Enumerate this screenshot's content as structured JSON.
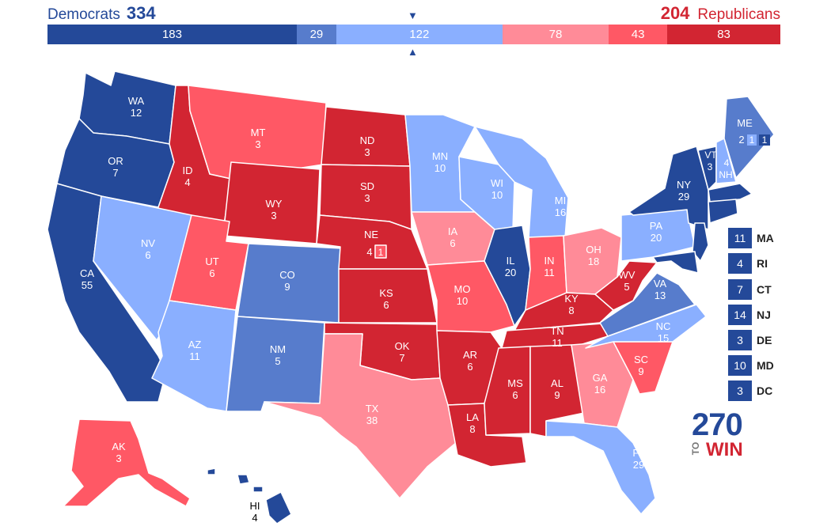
{
  "header": {
    "dem_label": "Democrats",
    "dem_total": "334",
    "rep_total": "204",
    "rep_label": "Republicans"
  },
  "colors": {
    "safe_dem": "#244999",
    "likely_dem": "#577ccc",
    "lean_dem": "#8aafff",
    "lean_rep": "#ff8b98",
    "likely_rep": "#ff5865",
    "safe_rep": "#d22532"
  },
  "bar": [
    {
      "value": "183",
      "votes": 183,
      "category": "safe_dem"
    },
    {
      "value": "29",
      "votes": 29,
      "category": "likely_dem"
    },
    {
      "value": "122",
      "votes": 122,
      "category": "lean_dem"
    },
    {
      "value": "78",
      "votes": 78,
      "category": "lean_rep"
    },
    {
      "value": "43",
      "votes": 43,
      "category": "likely_rep"
    },
    {
      "value": "83",
      "votes": 83,
      "category": "safe_rep"
    }
  ],
  "markers": {
    "top": "▼",
    "bottom": "▲"
  },
  "states": [
    {
      "abbr": "WA",
      "votes": "12",
      "category": "safe_dem"
    },
    {
      "abbr": "OR",
      "votes": "7",
      "category": "safe_dem"
    },
    {
      "abbr": "CA",
      "votes": "55",
      "category": "safe_dem"
    },
    {
      "abbr": "ID",
      "votes": "4",
      "category": "safe_rep"
    },
    {
      "abbr": "NV",
      "votes": "6",
      "category": "lean_dem"
    },
    {
      "abbr": "MT",
      "votes": "3",
      "category": "likely_rep"
    },
    {
      "abbr": "WY",
      "votes": "3",
      "category": "safe_rep"
    },
    {
      "abbr": "UT",
      "votes": "6",
      "category": "likely_rep"
    },
    {
      "abbr": "AZ",
      "votes": "11",
      "category": "lean_dem"
    },
    {
      "abbr": "CO",
      "votes": "9",
      "category": "likely_dem"
    },
    {
      "abbr": "NM",
      "votes": "5",
      "category": "likely_dem"
    },
    {
      "abbr": "ND",
      "votes": "3",
      "category": "safe_rep"
    },
    {
      "abbr": "SD",
      "votes": "3",
      "category": "safe_rep"
    },
    {
      "abbr": "NE",
      "votes": "4",
      "category": "safe_rep"
    },
    {
      "abbr": "KS",
      "votes": "6",
      "category": "safe_rep"
    },
    {
      "abbr": "OK",
      "votes": "7",
      "category": "safe_rep"
    },
    {
      "abbr": "TX",
      "votes": "38",
      "category": "lean_rep"
    },
    {
      "abbr": "MN",
      "votes": "10",
      "category": "lean_dem"
    },
    {
      "abbr": "IA",
      "votes": "6",
      "category": "lean_rep"
    },
    {
      "abbr": "MO",
      "votes": "10",
      "category": "likely_rep"
    },
    {
      "abbr": "AR",
      "votes": "6",
      "category": "safe_rep"
    },
    {
      "abbr": "LA",
      "votes": "8",
      "category": "safe_rep"
    },
    {
      "abbr": "WI",
      "votes": "10",
      "category": "lean_dem"
    },
    {
      "abbr": "IL",
      "votes": "20",
      "category": "safe_dem"
    },
    {
      "abbr": "MI",
      "votes": "16",
      "category": "lean_dem"
    },
    {
      "abbr": "IN",
      "votes": "11",
      "category": "likely_rep"
    },
    {
      "abbr": "OH",
      "votes": "18",
      "category": "lean_rep"
    },
    {
      "abbr": "KY",
      "votes": "8",
      "category": "safe_rep"
    },
    {
      "abbr": "TN",
      "votes": "11",
      "category": "safe_rep"
    },
    {
      "abbr": "MS",
      "votes": "6",
      "category": "safe_rep"
    },
    {
      "abbr": "AL",
      "votes": "9",
      "category": "safe_rep"
    },
    {
      "abbr": "GA",
      "votes": "16",
      "category": "lean_rep"
    },
    {
      "abbr": "FL",
      "votes": "29",
      "category": "lean_dem"
    },
    {
      "abbr": "SC",
      "votes": "9",
      "category": "likely_rep"
    },
    {
      "abbr": "NC",
      "votes": "15",
      "category": "lean_dem"
    },
    {
      "abbr": "VA",
      "votes": "13",
      "category": "likely_dem"
    },
    {
      "abbr": "WV",
      "votes": "5",
      "category": "safe_rep"
    },
    {
      "abbr": "PA",
      "votes": "20",
      "category": "lean_dem"
    },
    {
      "abbr": "NY",
      "votes": "29",
      "category": "safe_dem"
    },
    {
      "abbr": "VT",
      "votes": "3",
      "category": "safe_dem"
    },
    {
      "abbr": "NH",
      "votes": "4",
      "category": "lean_dem"
    },
    {
      "abbr": "ME",
      "votes": "2",
      "category": "likely_dem"
    },
    {
      "abbr": "AK",
      "votes": "3",
      "category": "likely_rep"
    },
    {
      "abbr": "HI",
      "votes": "4",
      "category": "safe_dem"
    }
  ],
  "me_districts": [
    {
      "value": "1",
      "category": "lean_dem"
    },
    {
      "value": "1",
      "category": "safe_dem"
    }
  ],
  "ne_district": {
    "value": "1",
    "category": "likely_rep"
  },
  "small_states": [
    {
      "abbr": "MA",
      "votes": "11",
      "category": "safe_dem"
    },
    {
      "abbr": "RI",
      "votes": "4",
      "category": "safe_dem"
    },
    {
      "abbr": "CT",
      "votes": "7",
      "category": "safe_dem"
    },
    {
      "abbr": "NJ",
      "votes": "14",
      "category": "safe_dem"
    },
    {
      "abbr": "DE",
      "votes": "3",
      "category": "safe_dem"
    },
    {
      "abbr": "MD",
      "votes": "10",
      "category": "safe_dem"
    },
    {
      "abbr": "DC",
      "votes": "3",
      "category": "safe_dem"
    }
  ],
  "logo": {
    "number": "270",
    "to": "TO",
    "win": "WIN"
  }
}
